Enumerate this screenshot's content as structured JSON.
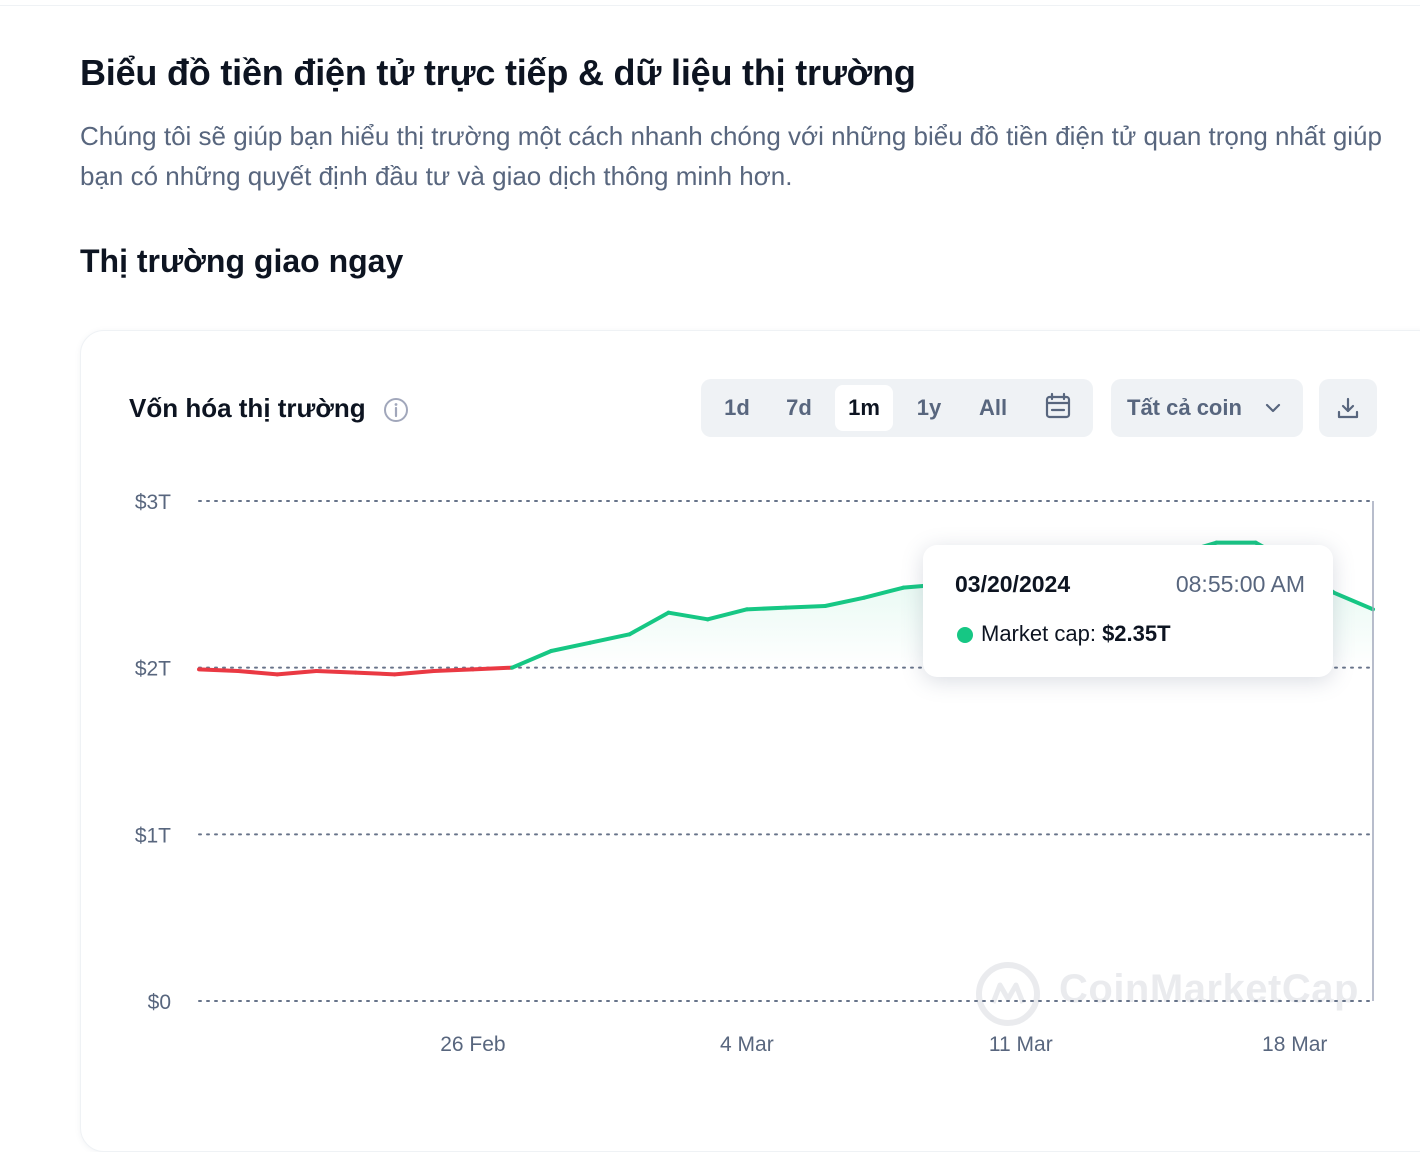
{
  "header": {
    "title": "Biểu đồ tiền điện tử trực tiếp & dữ liệu thị trường",
    "description": "Chúng tôi sẽ giúp bạn hiểu thị trường một cách nhanh chóng với những biểu đồ tiền điện tử quan trọng nhất giúp bạn có những quyết định đầu tư và giao dịch thông minh hơn."
  },
  "section": {
    "title": "Thị trường giao ngay"
  },
  "card": {
    "title": "Vốn hóa thị trường",
    "info_icon": "info-icon",
    "range_tabs": [
      {
        "label": "1d",
        "active": false
      },
      {
        "label": "7d",
        "active": false
      },
      {
        "label": "1m",
        "active": true
      },
      {
        "label": "1y",
        "active": false
      },
      {
        "label": "All",
        "active": false
      }
    ],
    "calendar_icon": "calendar-icon",
    "coin_select": {
      "value": "Tất cả coin",
      "icon": "chevron-down-icon"
    },
    "download_icon": "download-icon"
  },
  "tooltip": {
    "date": "03/20/2024",
    "time": "08:55:00 AM",
    "label": "Market cap:",
    "value": "$2.35T",
    "dot_color": "#16c784"
  },
  "watermark": {
    "text": "CoinMarketCap"
  },
  "colors": {
    "up": "#16c784",
    "down": "#ea3943",
    "grid": "#58667e",
    "axis_text": "#58667e"
  },
  "chart_data": {
    "type": "line",
    "title": "Vốn hóa thị trường",
    "series": [
      {
        "values": [
          [
            "2024-02-19",
            1.99
          ],
          [
            "2024-02-20",
            1.98
          ],
          [
            "2024-02-21",
            1.96
          ],
          [
            "2024-02-22",
            1.98
          ],
          [
            "2024-02-23",
            1.97
          ],
          [
            "2024-02-24",
            1.96
          ],
          [
            "2024-02-25",
            1.98
          ],
          [
            "2024-02-26",
            1.99
          ],
          [
            "2024-02-27",
            2.0
          ],
          [
            "2024-02-28",
            2.1
          ],
          [
            "2024-02-29",
            2.15
          ],
          [
            "2024-03-01",
            2.2
          ],
          [
            "2024-03-02",
            2.33
          ],
          [
            "2024-03-03",
            2.29
          ],
          [
            "2024-03-04",
            2.35
          ],
          [
            "2024-03-05",
            2.36
          ],
          [
            "2024-03-06",
            2.37
          ],
          [
            "2024-03-07",
            2.42
          ],
          [
            "2024-03-08",
            2.48
          ],
          [
            "2024-03-09",
            2.5
          ],
          [
            "2024-03-10",
            2.34
          ],
          [
            "2024-03-11",
            2.53
          ],
          [
            "2024-03-12",
            2.55
          ],
          [
            "2024-03-13",
            2.58
          ],
          [
            "2024-03-14",
            2.62
          ],
          [
            "2024-03-15",
            2.68
          ],
          [
            "2024-03-16",
            2.75
          ],
          [
            "2024-03-17",
            2.75
          ],
          [
            "2024-03-18",
            2.62
          ],
          [
            "2024-03-19",
            2.45
          ],
          [
            "2024-03-20",
            2.35
          ]
        ]
      }
    ],
    "baseline": 2.0,
    "y_ticks": [
      "$0",
      "$1T",
      "$2T",
      "$3T"
    ],
    "y_tick_values": [
      0,
      1,
      2,
      3
    ],
    "ylim": [
      0,
      3
    ],
    "x_ticks": [
      {
        "label": "26 Feb",
        "date": "2024-02-26"
      },
      {
        "label": "4 Mar",
        "date": "2024-03-04"
      },
      {
        "label": "11 Mar",
        "date": "2024-03-11"
      },
      {
        "label": "18 Mar",
        "date": "2024-03-18"
      }
    ],
    "xlim": [
      "2024-02-19",
      "2024-03-20"
    ],
    "grid": true,
    "grid_style": "dotted",
    "hover_date": "2024-03-20"
  }
}
